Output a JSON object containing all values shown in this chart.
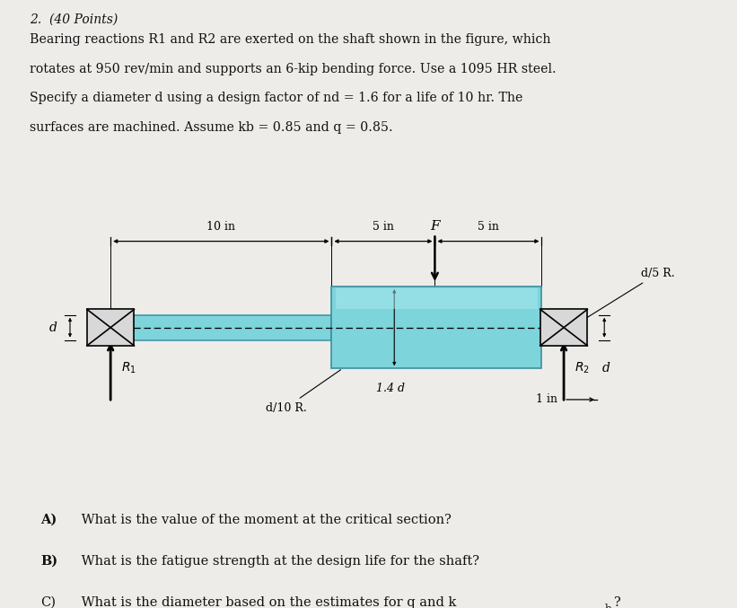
{
  "bg_color": "#eeece9",
  "shaft_color": "#7dd4db",
  "shaft_outline": "#3a8fa0",
  "shaft_dark": "#4a9fb0",
  "text_color": "#111111",
  "line_color": "#1a1a1a",
  "fig_width": 8.21,
  "fig_height": 6.77,
  "dpi": 100,
  "header": "2.  (40 Points)",
  "problem_lines": [
    "Bearing reactions R1 and R2 are exerted on the shaft shown in the figure, which",
    "rotates at 950 rev/min and supports an 6-kip bending force. Use a 1095 HR steel.",
    "Specify a diameter d using a design factor of nd = 1.6 for a life of 10 hr. The",
    "surfaces are machined. Assume kb = 0.85 and q = 0.85."
  ],
  "q_labels": [
    "A)",
    "B)",
    "C)"
  ],
  "q_bold": [
    true,
    true,
    false
  ],
  "q_texts": [
    " What is the value of the moment at the critical section?",
    " What is the fatigue strength at the design life for the shaft?",
    " What is the diameter based on the estimates for q and k"
  ]
}
